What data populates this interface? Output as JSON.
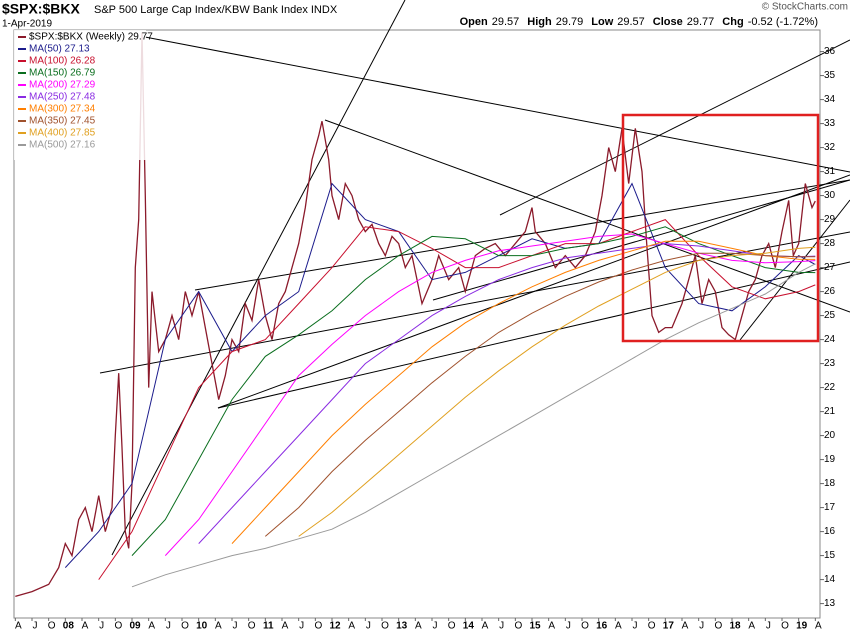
{
  "chart_data": {
    "type": "line",
    "title": "$SPX:$BKX",
    "subtitle": "S&P 500 Large Cap Index/KBW Bank Index INDX",
    "date": "1-Apr-2019",
    "source": "© StockCharts.com",
    "ohlc": [
      {
        "label": "Open",
        "value": 29.57
      },
      {
        "label": "High",
        "value": 29.79
      },
      {
        "label": "Low",
        "value": 29.57
      },
      {
        "label": "Close",
        "value": 29.77
      },
      {
        "label": "Chg",
        "value": "-0.52 (-1.72%)"
      }
    ],
    "xlim": [
      2007.23,
      2019.32
    ],
    "ylim": [
      12.4,
      36.9
    ],
    "yticks": [
      13,
      14,
      15,
      16,
      17,
      18,
      19,
      20,
      21,
      22,
      23,
      24,
      25,
      26,
      27,
      28,
      29,
      30,
      31,
      32,
      33,
      34,
      35,
      36
    ],
    "xticks": [
      {
        "value": 2007.25,
        "label": "A"
      },
      {
        "value": 2007.5,
        "label": "J"
      },
      {
        "value": 2007.75,
        "label": "O"
      },
      {
        "value": 2008,
        "label": "08"
      },
      {
        "value": 2008.25,
        "label": "A"
      },
      {
        "value": 2008.5,
        "label": "J"
      },
      {
        "value": 2008.75,
        "label": "O"
      },
      {
        "value": 2009,
        "label": "09"
      },
      {
        "value": 2009.25,
        "label": "A"
      },
      {
        "value": 2009.5,
        "label": "J"
      },
      {
        "value": 2009.75,
        "label": "O"
      },
      {
        "value": 2010,
        "label": "10"
      },
      {
        "value": 2010.25,
        "label": "A"
      },
      {
        "value": 2010.5,
        "label": "J"
      },
      {
        "value": 2010.75,
        "label": "O"
      },
      {
        "value": 2011,
        "label": "11"
      },
      {
        "value": 2011.25,
        "label": "A"
      },
      {
        "value": 2011.5,
        "label": "J"
      },
      {
        "value": 2011.75,
        "label": "O"
      },
      {
        "value": 2012,
        "label": "12"
      },
      {
        "value": 2012.25,
        "label": "A"
      },
      {
        "value": 2012.5,
        "label": "J"
      },
      {
        "value": 2012.75,
        "label": "O"
      },
      {
        "value": 2013,
        "label": "13"
      },
      {
        "value": 2013.25,
        "label": "A"
      },
      {
        "value": 2013.5,
        "label": "J"
      },
      {
        "value": 2013.75,
        "label": "O"
      },
      {
        "value": 2014,
        "label": "14"
      },
      {
        "value": 2014.25,
        "label": "A"
      },
      {
        "value": 2014.5,
        "label": "J"
      },
      {
        "value": 2014.75,
        "label": "O"
      },
      {
        "value": 2015,
        "label": "15"
      },
      {
        "value": 2015.25,
        "label": "A"
      },
      {
        "value": 2015.5,
        "label": "J"
      },
      {
        "value": 2015.75,
        "label": "O"
      },
      {
        "value": 2016,
        "label": "16"
      },
      {
        "value": 2016.25,
        "label": "A"
      },
      {
        "value": 2016.5,
        "label": "J"
      },
      {
        "value": 2016.75,
        "label": "O"
      },
      {
        "value": 2017,
        "label": "17"
      },
      {
        "value": 2017.25,
        "label": "A"
      },
      {
        "value": 2017.5,
        "label": "J"
      },
      {
        "value": 2017.75,
        "label": "O"
      },
      {
        "value": 2018,
        "label": "18"
      },
      {
        "value": 2018.25,
        "label": "A"
      },
      {
        "value": 2018.5,
        "label": "J"
      },
      {
        "value": 2018.75,
        "label": "O"
      },
      {
        "value": 2019,
        "label": "19"
      },
      {
        "value": 2019.25,
        "label": "A"
      }
    ],
    "grid": false,
    "series": [
      {
        "name": "$SPX:$BKX (Weekly) 29.77",
        "color": "#8b1a2b",
        "x": [
          2007.25,
          2007.5,
          2007.75,
          2007.9,
          2008.0,
          2008.1,
          2008.2,
          2008.3,
          2008.4,
          2008.5,
          2008.6,
          2008.7,
          2008.75,
          2008.8,
          2008.85,
          2008.9,
          2008.95,
          2009.0,
          2009.05,
          2009.1,
          2009.15,
          2009.2,
          2009.25,
          2009.3,
          2009.4,
          2009.5,
          2009.6,
          2009.7,
          2009.8,
          2009.9,
          2010.0,
          2010.1,
          2010.2,
          2010.3,
          2010.4,
          2010.5,
          2010.6,
          2010.7,
          2010.8,
          2010.9,
          2011.0,
          2011.1,
          2011.2,
          2011.3,
          2011.4,
          2011.5,
          2011.6,
          2011.7,
          2011.8,
          2011.85,
          2011.95,
          2012.0,
          2012.1,
          2012.2,
          2012.3,
          2012.4,
          2012.5,
          2012.6,
          2012.7,
          2012.8,
          2012.9,
          2013.0,
          2013.1,
          2013.2,
          2013.35,
          2013.5,
          2013.6,
          2013.75,
          2013.9,
          2014.0,
          2014.15,
          2014.3,
          2014.45,
          2014.6,
          2014.75,
          2014.9,
          2015.0,
          2015.05,
          2015.2,
          2015.35,
          2015.5,
          2015.65,
          2015.8,
          2015.95,
          2016.05,
          2016.15,
          2016.25,
          2016.35,
          2016.45,
          2016.55,
          2016.65,
          2016.72,
          2016.8,
          2016.9,
          2017.0,
          2017.1,
          2017.25,
          2017.35,
          2017.45,
          2017.55,
          2017.65,
          2017.75,
          2017.85,
          2017.95,
          2018.05,
          2018.15,
          2018.25,
          2018.35,
          2018.45,
          2018.55,
          2018.65,
          2018.75,
          2018.85,
          2018.92,
          2019.0,
          2019.1,
          2019.2,
          2019.25
        ],
        "values": [
          13.3,
          13.5,
          13.8,
          14.5,
          15.5,
          15.0,
          16.5,
          17.0,
          16.0,
          17.5,
          16.0,
          17.0,
          20.0,
          22.6,
          19.5,
          16.0,
          15.3,
          18.0,
          27.0,
          29.0,
          36.8,
          30.0,
          22.0,
          26.0,
          23.5,
          24.0,
          25.0,
          24.0,
          26.0,
          25.0,
          26.0,
          24.5,
          23.0,
          21.5,
          22.5,
          24.0,
          23.5,
          25.5,
          24.8,
          26.5,
          25.0,
          24.0,
          25.5,
          26.0,
          27.0,
          28.0,
          29.5,
          31.5,
          32.5,
          33.1,
          31.5,
          30.0,
          29.0,
          30.5,
          30.0,
          29.0,
          28.5,
          28.8,
          28.0,
          27.5,
          28.3,
          28.0,
          27.0,
          27.5,
          25.5,
          26.5,
          27.5,
          26.5,
          27.0,
          26.0,
          27.5,
          27.8,
          28.0,
          27.5,
          28.0,
          28.5,
          29.5,
          28.5,
          28.0,
          27.0,
          27.5,
          27.0,
          27.5,
          28.5,
          30.0,
          32.0,
          31.0,
          32.8,
          30.5,
          32.8,
          31.0,
          28.0,
          25.0,
          24.3,
          24.5,
          24.5,
          25.5,
          26.5,
          27.5,
          25.5,
          26.5,
          26.0,
          24.5,
          24.2,
          24.0,
          25.0,
          26.0,
          26.5,
          27.5,
          28.0,
          27.0,
          28.5,
          29.8,
          27.5,
          28.0,
          30.5,
          29.5,
          29.77
        ]
      },
      {
        "name": "MA(50) 27.13",
        "color": "#1c1c8c",
        "x": [
          2008.0,
          2008.5,
          2009.0,
          2009.5,
          2010.0,
          2010.5,
          2011.0,
          2011.5,
          2012.0,
          2012.5,
          2013.0,
          2013.5,
          2014.0,
          2014.5,
          2015.0,
          2015.5,
          2016.0,
          2016.5,
          2017.0,
          2017.5,
          2018.0,
          2018.5,
          2019.0,
          2019.25
        ],
        "values": [
          14.5,
          16,
          18,
          24,
          26,
          23.5,
          25,
          26,
          30.5,
          29,
          28.5,
          26.5,
          26.8,
          27.5,
          28.2,
          27.8,
          28,
          30.5,
          27,
          25.5,
          25.2,
          26.2,
          27.5,
          27.13
        ]
      },
      {
        "name": "MA(100) 26.28",
        "color": "#c8102e",
        "x": [
          2008.5,
          2009.0,
          2009.5,
          2010.0,
          2010.5,
          2011.0,
          2011.5,
          2012.0,
          2012.5,
          2013.0,
          2013.5,
          2014.0,
          2014.5,
          2015.0,
          2015.5,
          2016.0,
          2016.5,
          2017.0,
          2017.5,
          2018.0,
          2018.5,
          2019.0,
          2019.25
        ],
        "values": [
          14,
          16,
          19,
          22,
          23.5,
          24,
          25.5,
          27,
          28.7,
          28.5,
          27.8,
          27,
          27,
          27.5,
          28,
          28,
          28.5,
          29,
          27.5,
          26.2,
          25.7,
          26,
          26.28
        ]
      },
      {
        "name": "MA(150) 26.79",
        "color": "#0a6e1e",
        "x": [
          2009.0,
          2009.5,
          2010.0,
          2010.5,
          2011.0,
          2011.5,
          2012.0,
          2012.5,
          2013.0,
          2013.5,
          2014.0,
          2014.5,
          2015.0,
          2015.5,
          2016.0,
          2016.5,
          2017.0,
          2017.5,
          2018.0,
          2018.5,
          2019.0,
          2019.25
        ],
        "values": [
          15,
          16.5,
          19,
          21.5,
          23.3,
          24.2,
          25.2,
          26.5,
          27.5,
          28.3,
          28.2,
          27.5,
          27.5,
          27.8,
          28,
          28.3,
          28.7,
          28,
          27.5,
          27,
          26.8,
          26.79
        ]
      },
      {
        "name": "MA(200) 27.29",
        "color": "#ff00ff",
        "x": [
          2009.5,
          2010.0,
          2010.5,
          2011.0,
          2011.5,
          2012.0,
          2012.5,
          2013.0,
          2013.5,
          2014.0,
          2014.5,
          2015.0,
          2015.5,
          2016.0,
          2016.5,
          2017.0,
          2017.5,
          2018.0,
          2018.5,
          2019.0,
          2019.25
        ],
        "values": [
          15,
          16.5,
          18.5,
          20.5,
          22.5,
          23.8,
          25,
          26,
          26.8,
          27.3,
          27.7,
          27.9,
          28.1,
          28.3,
          28.4,
          28,
          27.6,
          27.3,
          27.2,
          27.25,
          27.29
        ]
      },
      {
        "name": "MA(250) 27.48",
        "color": "#8a2be2",
        "x": [
          2010.0,
          2010.5,
          2011.0,
          2011.5,
          2012.0,
          2012.5,
          2013.0,
          2013.5,
          2014.0,
          2014.5,
          2015.0,
          2015.5,
          2016.0,
          2016.5,
          2017.0,
          2017.5,
          2018.0,
          2018.5,
          2019.0,
          2019.25
        ],
        "values": [
          15.5,
          17,
          18.5,
          20,
          21.5,
          23,
          24,
          25,
          25.8,
          26.5,
          27,
          27.4,
          27.6,
          27.8,
          28,
          27.9,
          27.7,
          27.5,
          27.45,
          27.48
        ]
      },
      {
        "name": "MA(300) 27.34",
        "color": "#ff7f00",
        "x": [
          2010.5,
          2011.0,
          2011.5,
          2012.0,
          2012.5,
          2013.0,
          2013.5,
          2014.0,
          2014.5,
          2015.0,
          2015.5,
          2016.0,
          2016.5,
          2017.0,
          2017.5,
          2018.0,
          2018.5,
          2019.0,
          2019.25
        ],
        "values": [
          15.5,
          17,
          18.5,
          20,
          21.3,
          22.5,
          23.7,
          24.7,
          25.5,
          26.2,
          26.8,
          27.3,
          27.7,
          28.1,
          28.1,
          27.8,
          27.5,
          27.35,
          27.34
        ]
      },
      {
        "name": "MA(350) 27.45",
        "color": "#a0522d",
        "x": [
          2011.0,
          2011.5,
          2012.0,
          2012.5,
          2013.0,
          2013.5,
          2014.0,
          2014.5,
          2015.0,
          2015.5,
          2016.0,
          2016.5,
          2017.0,
          2017.5,
          2018.0,
          2018.5,
          2019.0,
          2019.25
        ],
        "values": [
          15.8,
          17,
          18.5,
          19.8,
          21,
          22.2,
          23.3,
          24.3,
          25.1,
          25.8,
          26.4,
          26.9,
          27.3,
          27.6,
          27.6,
          27.5,
          27.45,
          27.45
        ]
      },
      {
        "name": "MA(400) 27.85",
        "color": "#e0a020",
        "x": [
          2011.5,
          2012.0,
          2012.5,
          2013.0,
          2013.5,
          2014.0,
          2014.5,
          2015.0,
          2015.5,
          2016.0,
          2016.5,
          2017.0,
          2017.5,
          2018.0,
          2018.5,
          2019.0,
          2019.25
        ],
        "values": [
          15.8,
          16.8,
          18,
          19.2,
          20.4,
          21.6,
          22.7,
          23.7,
          24.6,
          25.4,
          26.1,
          26.8,
          27.3,
          27.5,
          27.6,
          27.8,
          27.85
        ]
      },
      {
        "name": "MA(500) 27.16",
        "color": "#9a9a9a",
        "x": [
          2009.0,
          2009.5,
          2010.0,
          2010.5,
          2011.0,
          2011.5,
          2012.0,
          2012.5,
          2013.0,
          2013.5,
          2014.0,
          2014.5,
          2015.0,
          2015.5,
          2016.0,
          2016.5,
          2017.0,
          2017.5,
          2018.0,
          2018.5,
          2019.0,
          2019.25
        ],
        "values": [
          13.7,
          14.2,
          14.6,
          15,
          15.3,
          15.7,
          16.1,
          16.8,
          17.6,
          18.4,
          19.2,
          20,
          20.8,
          21.6,
          22.4,
          23.2,
          24,
          24.7,
          25.3,
          25.9,
          26.8,
          27.16
        ]
      }
    ]
  }
}
